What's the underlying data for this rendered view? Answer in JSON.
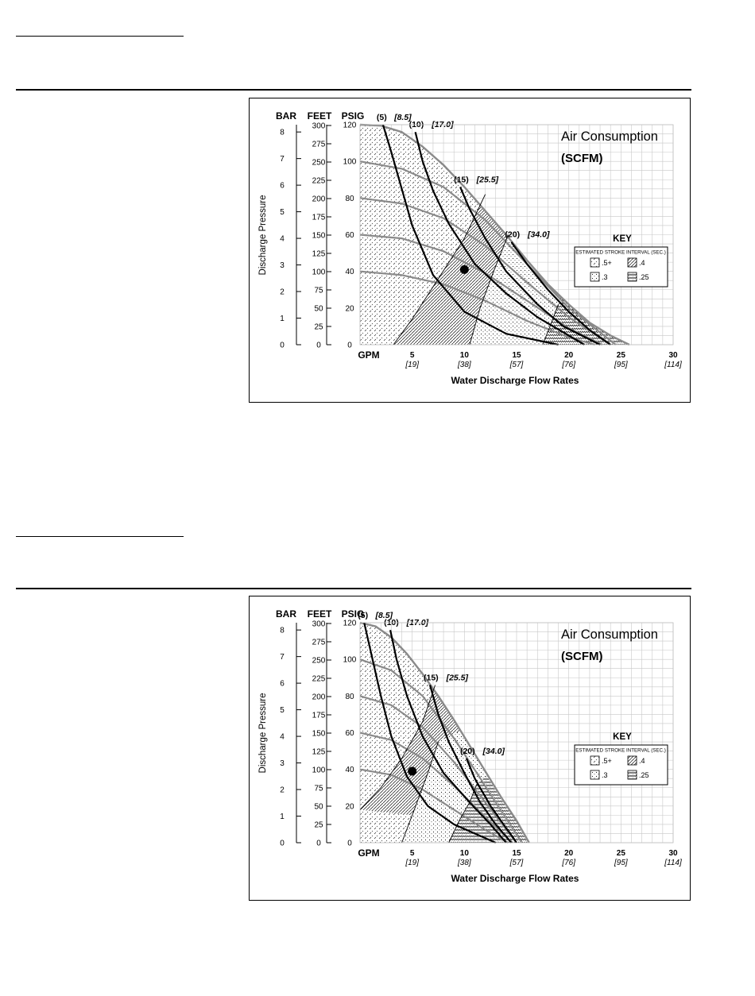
{
  "chart_data": [
    {
      "type": "line",
      "title": "Air Consumption",
      "subtitle": "(SCFM)",
      "xlabel": "Water Discharge Flow Rates",
      "ylabel": "Discharge Pressure",
      "unit_labels": {
        "bar": "BAR",
        "feet": "FEET",
        "psig": "PSIG",
        "gpm": "GPM"
      },
      "xlim": [
        0,
        30
      ],
      "ylim": [
        0,
        120
      ],
      "x_ticks": [
        "5",
        "10",
        "15",
        "20",
        "25",
        "30"
      ],
      "x_ticks_lpm": [
        "[19]",
        "[38]",
        "[57]",
        "[76]",
        "[95]",
        "[114]"
      ],
      "psig_ticks": [
        "0",
        "20",
        "40",
        "60",
        "80",
        "100",
        "120"
      ],
      "feet_ticks": [
        "0",
        "25",
        "50",
        "75",
        "100",
        "125",
        "150",
        "175",
        "200",
        "225",
        "250",
        "275",
        "300"
      ],
      "bar_ticks": [
        "0",
        "1",
        "2",
        "3",
        "4",
        "5",
        "6",
        "7",
        "8"
      ],
      "grid": true,
      "legend": {
        "title": "KEY",
        "subtitle": "ESTIMATED STROKE INTERVAL (SEC.)",
        "items": [
          ".5+",
          ".4",
          ".3",
          ".25"
        ],
        "placement": "right"
      },
      "envelope": [
        [
          0,
          120
        ],
        [
          2,
          119.5
        ],
        [
          4,
          116
        ],
        [
          6,
          108
        ],
        [
          8,
          98
        ],
        [
          10,
          86
        ],
        [
          12,
          73
        ],
        [
          14,
          60
        ],
        [
          16,
          46
        ],
        [
          18,
          33
        ],
        [
          20,
          22
        ],
        [
          22,
          12
        ],
        [
          24,
          5
        ],
        [
          25.8,
          0
        ]
      ],
      "pressure_curves": [
        {
          "points": [
            [
              0,
              100
            ],
            [
              4,
              96
            ],
            [
              8,
              86
            ],
            [
              12,
              68
            ],
            [
              16,
              44
            ],
            [
              20,
              20
            ],
            [
              24.5,
              0
            ]
          ]
        },
        {
          "points": [
            [
              0,
              80
            ],
            [
              4,
              77
            ],
            [
              8,
              69
            ],
            [
              12,
              54
            ],
            [
              16,
              34
            ],
            [
              20,
              15
            ],
            [
              24,
              0
            ]
          ]
        },
        {
          "points": [
            [
              0,
              60
            ],
            [
              4,
              58
            ],
            [
              8,
              51
            ],
            [
              12,
              39
            ],
            [
              16,
              24
            ],
            [
              20,
              9
            ],
            [
              23.2,
              0
            ]
          ]
        },
        {
          "points": [
            [
              0,
              40
            ],
            [
              4,
              38
            ],
            [
              8,
              33
            ],
            [
              12,
              24
            ],
            [
              16,
              13
            ],
            [
              20,
              4
            ],
            [
              22.5,
              0
            ]
          ]
        }
      ],
      "air_curves": [
        {
          "label": "(5)",
          "label_metric": "[8.5]",
          "points": [
            [
              2.2,
              120
            ],
            [
              3,
              105
            ],
            [
              4,
              85
            ],
            [
              5,
              65
            ],
            [
              7,
              38
            ],
            [
              10,
              18
            ],
            [
              14,
              6
            ],
            [
              19,
              0
            ]
          ]
        },
        {
          "label": "(10)",
          "label_metric": "[17.0]",
          "points": [
            [
              5.3,
              116
            ],
            [
              6,
              100
            ],
            [
              7,
              84
            ],
            [
              8.5,
              66
            ],
            [
              11,
              44
            ],
            [
              14,
              28
            ],
            [
              17,
              15
            ],
            [
              21.5,
              0
            ]
          ]
        },
        {
          "label": "(15)",
          "label_metric": "[25.5]",
          "points": [
            [
              9.6,
              86
            ],
            [
              10.5,
              74
            ],
            [
              12,
              58
            ],
            [
              14,
              40
            ],
            [
              17,
              22
            ],
            [
              19.5,
              10
            ],
            [
              23,
              0
            ]
          ]
        },
        {
          "label": "(20)",
          "label_metric": "[34.0]",
          "points": [
            [
              14.5,
              56
            ],
            [
              16,
              44
            ],
            [
              18,
              30
            ],
            [
              20,
              18
            ],
            [
              22,
              8
            ],
            [
              24,
              0
            ]
          ]
        }
      ],
      "stroke_boundaries": [
        {
          "points": [
            [
              3.2,
              0
            ],
            [
              5,
              14
            ],
            [
              7.5,
              36
            ],
            [
              10,
              58
            ],
            [
              12,
              82
            ]
          ]
        },
        {
          "points": [
            [
              10.5,
              0
            ],
            [
              11.5,
              20
            ],
            [
              12.8,
              40
            ],
            [
              14.2,
              60
            ]
          ]
        },
        {
          "points": [
            [
              17.5,
              0
            ],
            [
              18.2,
              10
            ],
            [
              19,
              22
            ]
          ]
        }
      ],
      "marker": {
        "x": 10,
        "y": 41
      }
    },
    {
      "type": "line",
      "title": "Air Consumption",
      "subtitle": "(SCFM)",
      "xlabel": "Water Discharge Flow Rates",
      "ylabel": "Discharge Pressure",
      "unit_labels": {
        "bar": "BAR",
        "feet": "FEET",
        "psig": "PSIG",
        "gpm": "GPM"
      },
      "xlim": [
        0,
        30
      ],
      "ylim": [
        0,
        120
      ],
      "x_ticks": [
        "5",
        "10",
        "15",
        "20",
        "25",
        "30"
      ],
      "x_ticks_lpm": [
        "[19]",
        "[38]",
        "[57]",
        "[76]",
        "[95]",
        "[114]"
      ],
      "psig_ticks": [
        "0",
        "20",
        "40",
        "60",
        "80",
        "100",
        "120"
      ],
      "feet_ticks": [
        "0",
        "25",
        "50",
        "75",
        "100",
        "125",
        "150",
        "175",
        "200",
        "225",
        "250",
        "275",
        "300"
      ],
      "bar_ticks": [
        "0",
        "1",
        "2",
        "3",
        "4",
        "5",
        "6",
        "7",
        "8"
      ],
      "grid": true,
      "legend": {
        "title": "KEY",
        "subtitle": "ESTIMATED STROKE INTERVAL (SEC.)",
        "items": [
          ".5+",
          ".4",
          ".3",
          ".25"
        ],
        "placement": "right"
      },
      "envelope": [
        [
          0,
          120
        ],
        [
          1.5,
          118
        ],
        [
          3,
          112
        ],
        [
          4.5,
          103
        ],
        [
          6,
          92
        ],
        [
          7.5,
          80
        ],
        [
          9,
          67
        ],
        [
          10.5,
          53
        ],
        [
          12,
          39
        ],
        [
          13.5,
          25
        ],
        [
          15,
          12
        ],
        [
          16.2,
          0
        ]
      ],
      "pressure_curves": [
        {
          "points": [
            [
              0,
              100
            ],
            [
              3,
              94
            ],
            [
              6,
              80
            ],
            [
              9,
              57
            ],
            [
              12,
              31
            ],
            [
              15.5,
              0
            ]
          ]
        },
        {
          "points": [
            [
              0,
              80
            ],
            [
              3,
              75
            ],
            [
              6,
              63
            ],
            [
              9,
              44
            ],
            [
              12,
              22
            ],
            [
              15,
              0
            ]
          ]
        },
        {
          "points": [
            [
              0,
              60
            ],
            [
              3,
              56
            ],
            [
              6,
              46
            ],
            [
              9,
              31
            ],
            [
              12,
              14
            ],
            [
              14.6,
              0
            ]
          ]
        },
        {
          "points": [
            [
              0,
              40
            ],
            [
              3,
              37
            ],
            [
              6,
              29
            ],
            [
              9,
              18
            ],
            [
              12,
              7
            ],
            [
              14.2,
              0
            ]
          ]
        }
      ],
      "air_curves": [
        {
          "label": "(5)",
          "label_metric": "[8.5]",
          "points": [
            [
              0.4,
              120
            ],
            [
              1,
              105
            ],
            [
              2,
              80
            ],
            [
              3,
              58
            ],
            [
              4.5,
              36
            ],
            [
              6.5,
              20
            ],
            [
              9,
              10
            ],
            [
              13,
              0
            ]
          ]
        },
        {
          "label": "(10)",
          "label_metric": "[17.0]",
          "points": [
            [
              2.9,
              116
            ],
            [
              3.5,
              100
            ],
            [
              4.5,
              80
            ],
            [
              6,
              58
            ],
            [
              8,
              38
            ],
            [
              10.5,
              22
            ],
            [
              12.5,
              10
            ],
            [
              14,
              0
            ]
          ]
        },
        {
          "label": "(15)",
          "label_metric": "[25.5]",
          "points": [
            [
              6.7,
              86
            ],
            [
              7.5,
              70
            ],
            [
              8.5,
              55
            ],
            [
              10,
              38
            ],
            [
              11.5,
              22
            ],
            [
              13,
              10
            ],
            [
              14.5,
              0
            ]
          ]
        },
        {
          "label": "(20)",
          "label_metric": "[34.0]",
          "points": [
            [
              10.2,
              46
            ],
            [
              11,
              35
            ],
            [
              12.5,
              20
            ],
            [
              14,
              8
            ],
            [
              15,
              0
            ]
          ]
        }
      ],
      "stroke_boundaries": [
        {
          "points": [
            [
              0,
              18
            ],
            [
              2,
              30
            ],
            [
              4,
              46
            ],
            [
              6,
              66
            ],
            [
              7.2,
              86
            ]
          ]
        },
        {
          "points": [
            [
              4,
              0
            ],
            [
              5.2,
              18
            ],
            [
              6.5,
              38
            ],
            [
              7.5,
              55
            ]
          ]
        },
        {
          "points": [
            [
              8.5,
              0
            ],
            [
              9.5,
              12
            ],
            [
              10.5,
              22
            ],
            [
              11.2,
              32
            ]
          ]
        }
      ],
      "marker": {
        "x": 5,
        "y": 39
      }
    }
  ]
}
